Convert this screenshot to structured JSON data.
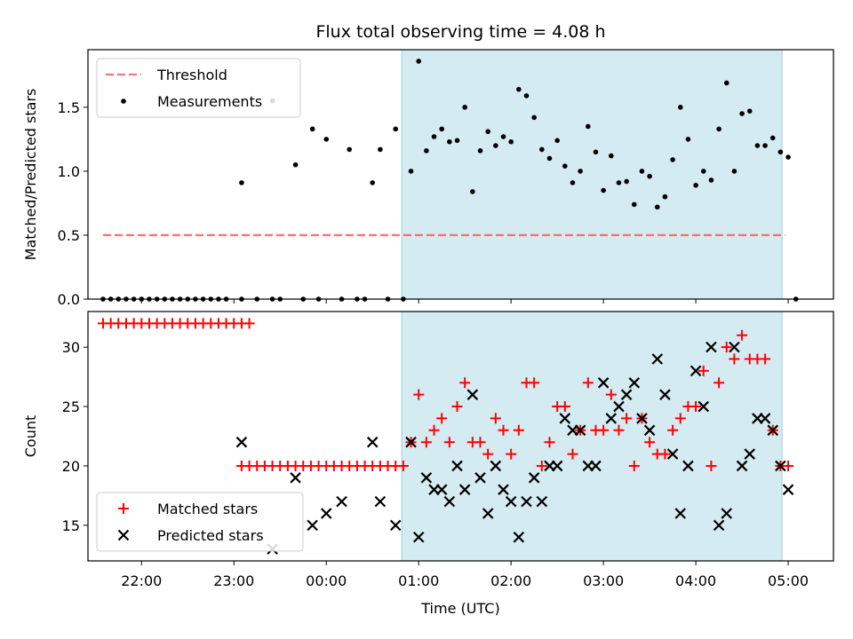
{
  "chart_data": [
    {
      "type": "scatter",
      "title": "Flux total observing time = 4.08 h",
      "ylabel": "Matched/Predicted stars",
      "xlabel": "",
      "x_axis": "time (UTC), continuous from 21:00 day 1",
      "ylim": [
        0,
        1.95
      ],
      "yticks": [
        0.0,
        0.5,
        1.0,
        1.5
      ],
      "ytick_labels": [
        "0.0",
        "0.5",
        "1.0",
        "1.5"
      ],
      "shaded_interval": {
        "from": "00:49",
        "to": "04:56",
        "color": "#add8e6"
      },
      "legend": {
        "placement": "upper-left",
        "entries": [
          "Threshold",
          "Measurements"
        ]
      },
      "series": [
        {
          "name": "Threshold",
          "style": "dashed-line",
          "color": "#ff5c5c",
          "points": [
            [
              "21:35",
              0.5
            ],
            [
              "04:58",
              0.5
            ]
          ]
        },
        {
          "name": "Measurements",
          "style": "dot",
          "color": "#000000",
          "points": [
            [
              "21:35",
              0
            ],
            [
              "21:40",
              0
            ],
            [
              "21:45",
              0
            ],
            [
              "21:50",
              0
            ],
            [
              "21:55",
              0
            ],
            [
              "22:00",
              0
            ],
            [
              "22:05",
              0
            ],
            [
              "22:10",
              0
            ],
            [
              "22:15",
              0
            ],
            [
              "22:20",
              0
            ],
            [
              "22:25",
              0
            ],
            [
              "22:30",
              0
            ],
            [
              "22:35",
              0
            ],
            [
              "22:40",
              0
            ],
            [
              "22:45",
              0
            ],
            [
              "22:50",
              0
            ],
            [
              "22:55",
              0
            ],
            [
              "23:05",
              0.91
            ],
            [
              "23:05",
              0
            ],
            [
              "23:15",
              0
            ],
            [
              "23:25",
              1.55
            ],
            [
              "23:25",
              0
            ],
            [
              "23:30",
              0
            ],
            [
              "23:40",
              1.05
            ],
            [
              "23:45",
              0
            ],
            [
              "23:51",
              1.33
            ],
            [
              "23:55",
              0
            ],
            [
              "00:00",
              1.25
            ],
            [
              "00:10",
              0
            ],
            [
              "00:15",
              1.17
            ],
            [
              "00:20",
              0
            ],
            [
              "00:25",
              0
            ],
            [
              "00:30",
              0.91
            ],
            [
              "00:35",
              1.17
            ],
            [
              "00:40",
              0
            ],
            [
              "00:45",
              1.33
            ],
            [
              "00:50",
              0
            ],
            [
              "00:55",
              1.0
            ],
            [
              "01:00",
              1.86
            ],
            [
              "01:05",
              1.16
            ],
            [
              "01:10",
              1.27
            ],
            [
              "01:15",
              1.33
            ],
            [
              "01:20",
              1.23
            ],
            [
              "01:25",
              1.24
            ],
            [
              "01:30",
              1.5
            ],
            [
              "01:35",
              0.84
            ],
            [
              "01:40",
              1.16
            ],
            [
              "01:45",
              1.31
            ],
            [
              "01:50",
              1.2
            ],
            [
              "01:55",
              1.27
            ],
            [
              "02:00",
              1.23
            ],
            [
              "02:05",
              1.64
            ],
            [
              "02:10",
              1.59
            ],
            [
              "02:15",
              1.42
            ],
            [
              "02:20",
              1.17
            ],
            [
              "02:25",
              1.1
            ],
            [
              "02:30",
              1.24
            ],
            [
              "02:35",
              1.04
            ],
            [
              "02:40",
              0.91
            ],
            [
              "02:45",
              1.0
            ],
            [
              "02:50",
              1.35
            ],
            [
              "02:55",
              1.15
            ],
            [
              "03:00",
              0.85
            ],
            [
              "03:05",
              1.12
            ],
            [
              "03:10",
              0.91
            ],
            [
              "03:15",
              0.92
            ],
            [
              "03:20",
              0.74
            ],
            [
              "03:25",
              1.0
            ],
            [
              "03:30",
              0.96
            ],
            [
              "03:35",
              0.72
            ],
            [
              "03:40",
              0.8
            ],
            [
              "03:45",
              1.09
            ],
            [
              "03:50",
              1.5
            ],
            [
              "03:55",
              1.25
            ],
            [
              "04:00",
              0.89
            ],
            [
              "04:05",
              1.0
            ],
            [
              "04:10",
              0.93
            ],
            [
              "04:15",
              1.33
            ],
            [
              "04:20",
              1.69
            ],
            [
              "04:25",
              1.0
            ],
            [
              "04:30",
              1.45
            ],
            [
              "04:35",
              1.47
            ],
            [
              "04:40",
              1.2
            ],
            [
              "04:45",
              1.2
            ],
            [
              "04:50",
              1.26
            ],
            [
              "04:55",
              1.15
            ],
            [
              "05:00",
              1.11
            ],
            [
              "05:05",
              0
            ]
          ]
        }
      ]
    },
    {
      "type": "scatter",
      "title": "",
      "ylabel": "Count",
      "xlabel": "Time (UTC)",
      "x_axis": "time (UTC), continuous from 21:00 day 1",
      "ylim": [
        12,
        33
      ],
      "yticks": [
        15,
        20,
        25,
        30
      ],
      "ytick_labels": [
        "15",
        "20",
        "25",
        "30"
      ],
      "xticks": [
        "22:00",
        "23:00",
        "00:00",
        "01:00",
        "02:00",
        "03:00",
        "04:00",
        "05:00"
      ],
      "shaded_interval": {
        "from": "00:49",
        "to": "04:56",
        "color": "#add8e6"
      },
      "legend": {
        "placement": "lower-left",
        "entries": [
          "Matched stars",
          "Predicted stars"
        ]
      },
      "series": [
        {
          "name": "Matched stars",
          "style": "plus",
          "color": "#ff0000",
          "points": [
            [
              "21:35",
              32
            ],
            [
              "21:40",
              32
            ],
            [
              "21:45",
              32
            ],
            [
              "21:50",
              32
            ],
            [
              "21:55",
              32
            ],
            [
              "22:00",
              32
            ],
            [
              "22:05",
              32
            ],
            [
              "22:10",
              32
            ],
            [
              "22:15",
              32
            ],
            [
              "22:20",
              32
            ],
            [
              "22:25",
              32
            ],
            [
              "22:30",
              32
            ],
            [
              "22:35",
              32
            ],
            [
              "22:40",
              32
            ],
            [
              "22:45",
              32
            ],
            [
              "22:50",
              32
            ],
            [
              "22:55",
              32
            ],
            [
              "23:00",
              32
            ],
            [
              "23:05",
              32
            ],
            [
              "23:10",
              32
            ],
            [
              "23:05",
              20
            ],
            [
              "23:10",
              20
            ],
            [
              "23:15",
              20
            ],
            [
              "23:20",
              20
            ],
            [
              "23:25",
              20
            ],
            [
              "23:30",
              20
            ],
            [
              "23:35",
              20
            ],
            [
              "23:40",
              20
            ],
            [
              "23:45",
              20
            ],
            [
              "23:50",
              20
            ],
            [
              "23:55",
              20
            ],
            [
              "00:00",
              20
            ],
            [
              "00:05",
              20
            ],
            [
              "00:10",
              20
            ],
            [
              "00:15",
              20
            ],
            [
              "00:20",
              20
            ],
            [
              "00:25",
              20
            ],
            [
              "00:30",
              20
            ],
            [
              "00:35",
              20
            ],
            [
              "00:40",
              20
            ],
            [
              "00:45",
              20
            ],
            [
              "00:50",
              20
            ],
            [
              "00:55",
              22
            ],
            [
              "01:00",
              26
            ],
            [
              "01:05",
              22
            ],
            [
              "01:10",
              23
            ],
            [
              "01:15",
              24
            ],
            [
              "01:20",
              22
            ],
            [
              "01:25",
              25
            ],
            [
              "01:30",
              27
            ],
            [
              "01:35",
              22
            ],
            [
              "01:40",
              22
            ],
            [
              "01:45",
              21
            ],
            [
              "01:50",
              24
            ],
            [
              "01:55",
              23
            ],
            [
              "02:00",
              21
            ],
            [
              "02:05",
              23
            ],
            [
              "02:10",
              27
            ],
            [
              "02:15",
              27
            ],
            [
              "02:20",
              20
            ],
            [
              "02:25",
              22
            ],
            [
              "02:30",
              25
            ],
            [
              "02:35",
              25
            ],
            [
              "02:40",
              21
            ],
            [
              "02:45",
              23
            ],
            [
              "02:50",
              27
            ],
            [
              "02:55",
              23
            ],
            [
              "03:00",
              23
            ],
            [
              "03:05",
              26
            ],
            [
              "03:10",
              23
            ],
            [
              "03:15",
              24
            ],
            [
              "03:20",
              20
            ],
            [
              "03:25",
              24
            ],
            [
              "03:30",
              22
            ],
            [
              "03:35",
              21
            ],
            [
              "03:40",
              21
            ],
            [
              "03:45",
              23
            ],
            [
              "03:50",
              24
            ],
            [
              "03:55",
              25
            ],
            [
              "04:00",
              25
            ],
            [
              "04:05",
              28
            ],
            [
              "04:10",
              20
            ],
            [
              "04:15",
              27
            ],
            [
              "04:20",
              30
            ],
            [
              "04:25",
              29
            ],
            [
              "04:30",
              31
            ],
            [
              "04:35",
              29
            ],
            [
              "04:40",
              29
            ],
            [
              "04:45",
              29
            ],
            [
              "04:50",
              23
            ],
            [
              "04:55",
              20
            ],
            [
              "05:00",
              20
            ]
          ]
        },
        {
          "name": "Predicted stars",
          "style": "cross",
          "color": "#000000",
          "points": [
            [
              "23:05",
              22
            ],
            [
              "23:25",
              13
            ],
            [
              "23:40",
              19
            ],
            [
              "23:51",
              15
            ],
            [
              "00:00",
              16
            ],
            [
              "00:10",
              17
            ],
            [
              "00:30",
              22
            ],
            [
              "00:35",
              17
            ],
            [
              "00:45",
              15
            ],
            [
              "00:55",
              22
            ],
            [
              "01:00",
              14
            ],
            [
              "01:05",
              19
            ],
            [
              "01:10",
              18
            ],
            [
              "01:15",
              18
            ],
            [
              "01:20",
              17
            ],
            [
              "01:25",
              20
            ],
            [
              "01:30",
              18
            ],
            [
              "01:35",
              26
            ],
            [
              "01:40",
              19
            ],
            [
              "01:45",
              16
            ],
            [
              "01:50",
              20
            ],
            [
              "01:55",
              18
            ],
            [
              "02:00",
              17
            ],
            [
              "02:05",
              14
            ],
            [
              "02:10",
              17
            ],
            [
              "02:15",
              19
            ],
            [
              "02:20",
              17
            ],
            [
              "02:25",
              20
            ],
            [
              "02:30",
              20
            ],
            [
              "02:35",
              24
            ],
            [
              "02:40",
              23
            ],
            [
              "02:45",
              23
            ],
            [
              "02:50",
              20
            ],
            [
              "02:55",
              20
            ],
            [
              "03:00",
              27
            ],
            [
              "03:05",
              24
            ],
            [
              "03:10",
              25
            ],
            [
              "03:15",
              26
            ],
            [
              "03:20",
              27
            ],
            [
              "03:25",
              24
            ],
            [
              "03:30",
              23
            ],
            [
              "03:35",
              29
            ],
            [
              "03:40",
              26
            ],
            [
              "03:45",
              21
            ],
            [
              "03:50",
              16
            ],
            [
              "03:55",
              20
            ],
            [
              "04:00",
              28
            ],
            [
              "04:05",
              25
            ],
            [
              "04:10",
              30
            ],
            [
              "04:15",
              15
            ],
            [
              "04:20",
              16
            ],
            [
              "04:25",
              30
            ],
            [
              "04:30",
              20
            ],
            [
              "04:35",
              21
            ],
            [
              "04:40",
              24
            ],
            [
              "04:45",
              24
            ],
            [
              "04:50",
              23
            ],
            [
              "04:55",
              20
            ],
            [
              "05:00",
              18
            ]
          ]
        }
      ]
    }
  ]
}
